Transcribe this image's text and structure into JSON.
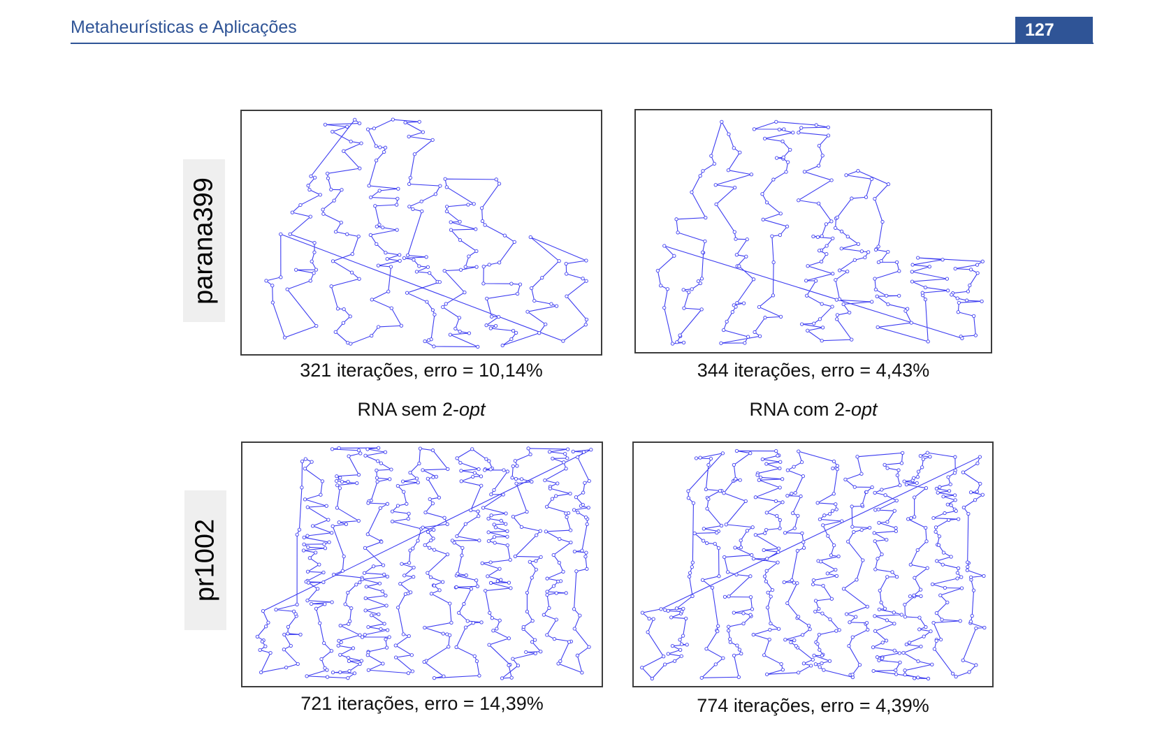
{
  "header": {
    "title": "Metaheurísticas e Aplicações",
    "page_number": "127"
  },
  "rows": [
    {
      "label": "parana399"
    },
    {
      "label": "pr1002"
    }
  ],
  "column_titles": [
    {
      "prefix": "RNA sem 2-",
      "italic": "opt"
    },
    {
      "prefix": "RNA com 2-",
      "italic": "opt"
    }
  ],
  "panels": [
    {
      "caption": "321 iterações, erro = 10,14%"
    },
    {
      "caption": "344 iterações, erro = 4,43%"
    },
    {
      "caption": "721 iterações, erro = 14,39%"
    },
    {
      "caption": "774 iterações, erro = 4,39%"
    }
  ],
  "colors": {
    "header": "#2f5496",
    "tour": "#3b3bf0"
  }
}
